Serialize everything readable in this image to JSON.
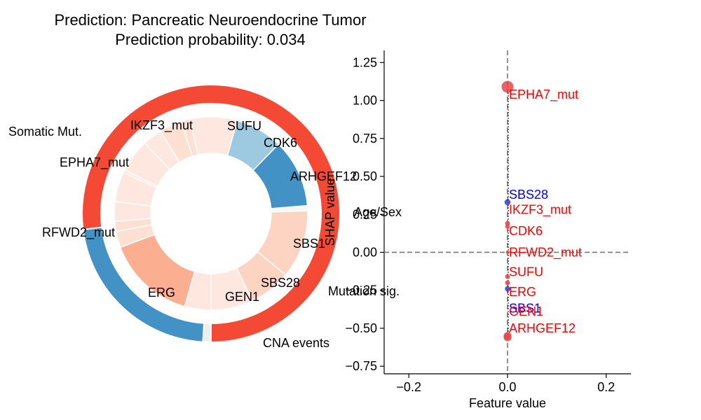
{
  "title_line1": "Prediction: Pancreatic Neuroendocrine Tumor",
  "title_line2": "Prediction probability: 0.034",
  "colors": {
    "outer_somatic": "#f34935",
    "outer_cna": "#4292c6",
    "positive": "#ff0000",
    "negative": "#0000ff",
    "marker_red": "#e8474b",
    "marker_blue": "#3a3acc"
  },
  "chart_data": [
    {
      "type": "pie",
      "subtype": "donut",
      "outer_ring": {
        "categories": [
          "Somatic Mut.",
          "CNA events",
          "Mutation sig."
        ],
        "values": [
          0.77,
          0.22,
          0.01
        ],
        "colors": [
          "#f34935",
          "#4292c6",
          "#eeeeee"
        ]
      },
      "inner_ring": {
        "labels": [
          "SUFU",
          "CDK6",
          "ARHGEF12",
          "",
          "SBS1",
          "SBS28",
          "GEN1",
          "",
          "ERG",
          "",
          "RFWD2_mut",
          "EPHA7_mut",
          "IKZF3_mut"
        ],
        "values": [
          0.08,
          0.08,
          0.13,
          0.01,
          0.13,
          0.09,
          0.09,
          0.06,
          0.1,
          0.1,
          0.05,
          0.17,
          0.05
        ],
        "colors": [
          "#fee7de",
          "#fdd3c2",
          "#fdd3c2",
          "#f7f7f7",
          "#4292c6",
          "#9ecae1",
          "#fee7de",
          "#fee0d2",
          "#fee7de",
          "#fee7de",
          "#fee0d2",
          "#fcae91",
          "#fee7de"
        ]
      },
      "outer_labels": [
        "Somatic Mut.",
        "CNA events",
        "Mutation sig."
      ],
      "inner_label_text": [
        "SUFU",
        "CDK6",
        "ARHGEF12",
        "SBS1",
        "SBS28",
        "GEN1",
        "ERG",
        "RFWD2_mut",
        "EPHA7_mut",
        "IKZF3_mut"
      ],
      "extra_label": "Age/Sex"
    },
    {
      "type": "scatter",
      "xlabel": "Feature value",
      "ylabel": "SHAP value",
      "xlim": [
        -0.25,
        0.25
      ],
      "ylim": [
        -0.8,
        1.33
      ],
      "xticks": [
        "−0.2",
        "0.0",
        "0.2"
      ],
      "xtick_values": [
        -0.2,
        0.0,
        0.2
      ],
      "yticks": [
        "−0.75",
        "−0.50",
        "−0.25",
        "0.00",
        "0.25",
        "0.50",
        "0.75",
        "1.00",
        "1.25"
      ],
      "ytick_values": [
        -0.75,
        -0.5,
        -0.25,
        0.0,
        0.25,
        0.5,
        0.75,
        1.0,
        1.25
      ],
      "reference_lines": {
        "x": 0.0,
        "y": 0.0
      },
      "points": [
        {
          "name": "EPHA7_mut",
          "x": 0.0,
          "y": 1.09,
          "sign": "positive",
          "label_y": 1.04
        },
        {
          "name": "SBS28",
          "x": 0.0,
          "y": 0.33,
          "sign": "negative",
          "label_y": 0.38
        },
        {
          "name": "IKZF3_mut",
          "x": 0.0,
          "y": 0.19,
          "sign": "positive",
          "label_y": 0.28
        },
        {
          "name": "CDK6",
          "x": 0.0,
          "y": 0.17,
          "sign": "positive",
          "label_y": 0.14
        },
        {
          "name": "RFWD2_mut",
          "x": 0.0,
          "y": 0.0,
          "sign": "positive",
          "label_y": 0.0
        },
        {
          "name": "SUFU",
          "x": 0.0,
          "y": -0.16,
          "sign": "positive",
          "label_y": -0.13
        },
        {
          "name": "ERG",
          "x": 0.0,
          "y": -0.2,
          "sign": "positive",
          "label_y": -0.26
        },
        {
          "name": "SBS1",
          "x": 0.0,
          "y": -0.24,
          "sign": "negative",
          "label_y": -0.37
        },
        {
          "name": "GEN1",
          "x": 0.0,
          "y": -0.55,
          "sign": "positive",
          "label_y": -0.39
        },
        {
          "name": "ARHGEF12",
          "x": 0.0,
          "y": -0.56,
          "sign": "positive",
          "label_y": -0.5
        }
      ]
    }
  ]
}
